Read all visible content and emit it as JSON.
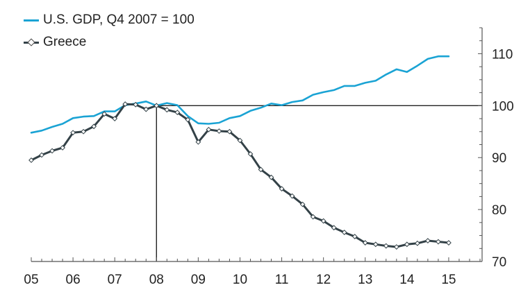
{
  "chart_data": {
    "type": "line",
    "title": "",
    "xlabel": "",
    "ylabel": "",
    "x_ticks": [
      "05",
      "06",
      "07",
      "08",
      "09",
      "10",
      "11",
      "12",
      "13",
      "14",
      "15"
    ],
    "x_tick_values": [
      2005,
      2006,
      2007,
      2008,
      2009,
      2010,
      2011,
      2012,
      2013,
      2014,
      2015
    ],
    "xlim": [
      2005,
      2015.8
    ],
    "ylim": [
      70,
      115
    ],
    "y_ticks": [
      70,
      80,
      90,
      100,
      110
    ],
    "y_axis_side": "right",
    "reference_lines": {
      "horizontal_y": 100,
      "vertical_x": 2008,
      "horizontal_from_x": 2008
    },
    "series": [
      {
        "name": "U.S. GDP, Q4 2007 = 100",
        "color": "#1aa3d4",
        "marker": "none",
        "x": [
          2005.0,
          2005.25,
          2005.5,
          2005.75,
          2006.0,
          2006.25,
          2006.5,
          2006.75,
          2007.0,
          2007.25,
          2007.5,
          2007.75,
          2008.0,
          2008.25,
          2008.5,
          2008.75,
          2009.0,
          2009.25,
          2009.5,
          2009.75,
          2010.0,
          2010.25,
          2010.5,
          2010.75,
          2011.0,
          2011.25,
          2011.5,
          2011.75,
          2012.0,
          2012.25,
          2012.5,
          2012.75,
          2013.0,
          2013.25,
          2013.5,
          2013.75,
          2014.0,
          2014.25,
          2014.5,
          2014.75,
          2015.0
        ],
        "values": [
          94.8,
          95.2,
          95.9,
          96.5,
          97.6,
          97.9,
          98.0,
          98.9,
          98.9,
          100.1,
          100.4,
          100.8,
          100.0,
          100.5,
          100.1,
          98.0,
          96.6,
          96.5,
          96.7,
          97.6,
          98.0,
          99.0,
          99.6,
          100.4,
          100.1,
          100.7,
          101.0,
          102.1,
          102.6,
          103.0,
          103.8,
          103.8,
          104.4,
          104.8,
          106.0,
          107.0,
          106.5,
          107.7,
          109.0,
          109.5,
          109.5
        ]
      },
      {
        "name": "Greece",
        "color": "#334147",
        "marker": "diamond",
        "x": [
          2005.0,
          2005.25,
          2005.5,
          2005.75,
          2006.0,
          2006.25,
          2006.5,
          2006.75,
          2007.0,
          2007.25,
          2007.5,
          2007.75,
          2008.0,
          2008.25,
          2008.5,
          2008.75,
          2009.0,
          2009.25,
          2009.5,
          2009.75,
          2010.0,
          2010.25,
          2010.5,
          2010.75,
          2011.0,
          2011.25,
          2011.5,
          2011.75,
          2012.0,
          2012.25,
          2012.5,
          2012.75,
          2013.0,
          2013.25,
          2013.5,
          2013.75,
          2014.0,
          2014.25,
          2014.5,
          2014.75,
          2015.0
        ],
        "values": [
          89.5,
          90.5,
          91.3,
          91.9,
          94.8,
          95.0,
          96.0,
          98.4,
          97.5,
          100.3,
          100.2,
          99.3,
          100.0,
          99.2,
          98.7,
          97.3,
          93.0,
          95.4,
          95.1,
          95.0,
          93.3,
          90.7,
          87.7,
          86.2,
          84.0,
          82.6,
          81.0,
          78.6,
          77.8,
          76.5,
          75.6,
          74.8,
          73.6,
          73.3,
          73.0,
          72.8,
          73.3,
          73.5,
          74.0,
          73.8,
          73.6
        ]
      }
    ],
    "legend_position": "top-left",
    "grid": false
  }
}
